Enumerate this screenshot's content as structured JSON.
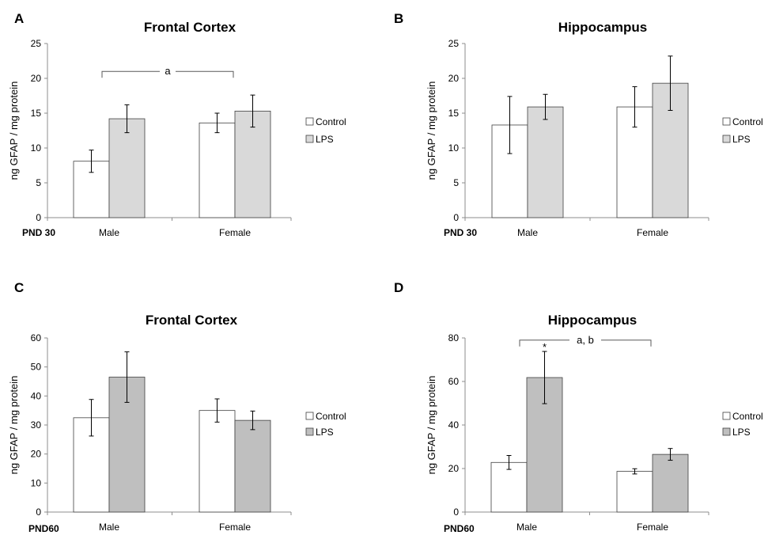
{
  "chart_data": [
    {
      "type": "bar",
      "panel": "A",
      "title": "Frontal Cortex",
      "ylabel": "ng GFAP / mg protein",
      "age_label": "PND 30",
      "categories": [
        "Male",
        "Female"
      ],
      "ylim": [
        0,
        25
      ],
      "yticks": [
        0,
        5,
        10,
        15,
        20,
        25
      ],
      "series": [
        {
          "name": "Control",
          "values": [
            8.1,
            13.6
          ],
          "errors": [
            1.6,
            1.4
          ],
          "color": "#ffffff"
        },
        {
          "name": "LPS",
          "values": [
            14.2,
            15.3
          ],
          "errors": [
            2.0,
            2.3
          ],
          "color": "#d9d9d9"
        }
      ],
      "annotations": [
        {
          "text": "a",
          "type": "bracket",
          "from": "Male",
          "to": "Female",
          "y": 21
        }
      ],
      "legend": "right"
    },
    {
      "type": "bar",
      "panel": "B",
      "title": "Hippocampus",
      "ylabel": "ng GFAP / mg protein",
      "age_label": "PND 30",
      "categories": [
        "Male",
        "Female"
      ],
      "ylim": [
        0,
        25
      ],
      "yticks": [
        0,
        5,
        10,
        15,
        20,
        25
      ],
      "series": [
        {
          "name": "Control",
          "values": [
            13.3,
            15.9
          ],
          "errors": [
            4.1,
            2.9
          ],
          "color": "#ffffff"
        },
        {
          "name": "LPS",
          "values": [
            15.9,
            19.3
          ],
          "errors": [
            1.8,
            3.9
          ],
          "color": "#d9d9d9"
        }
      ],
      "annotations": [],
      "legend": "right"
    },
    {
      "type": "bar",
      "panel": "C",
      "title": "Frontal Cortex",
      "ylabel": "ng GFAP / mg protein",
      "age_label": "PND60",
      "categories": [
        "Male",
        "Female"
      ],
      "ylim": [
        0,
        60
      ],
      "yticks": [
        0,
        10,
        20,
        30,
        40,
        50,
        60
      ],
      "series": [
        {
          "name": "Control",
          "values": [
            32.5,
            35.0
          ],
          "errors": [
            6.3,
            4.0
          ],
          "color": "#ffffff"
        },
        {
          "name": "LPS",
          "values": [
            46.5,
            31.6
          ],
          "errors": [
            8.7,
            3.2
          ],
          "color": "#bfbfbf"
        }
      ],
      "annotations": [],
      "legend": "right"
    },
    {
      "type": "bar",
      "panel": "D",
      "title": "Hippocampus",
      "ylabel": "ng GFAP / mg protein",
      "age_label": "PND60",
      "categories": [
        "Male",
        "Female"
      ],
      "ylim": [
        0,
        80
      ],
      "yticks": [
        0,
        20,
        40,
        60,
        80
      ],
      "series": [
        {
          "name": "Control",
          "values": [
            22.8,
            18.7
          ],
          "errors": [
            3.2,
            1.2
          ],
          "color": "#ffffff"
        },
        {
          "name": "LPS",
          "values": [
            61.8,
            26.5
          ],
          "errors": [
            12.0,
            2.7
          ],
          "color": "#bfbfbf"
        }
      ],
      "annotations": [
        {
          "text": "a, b",
          "type": "bracket",
          "from": "Male",
          "to": "Female",
          "y": 79
        },
        {
          "text": "*",
          "type": "marker",
          "category": "Male",
          "series": "LPS"
        }
      ],
      "legend": "right"
    }
  ]
}
